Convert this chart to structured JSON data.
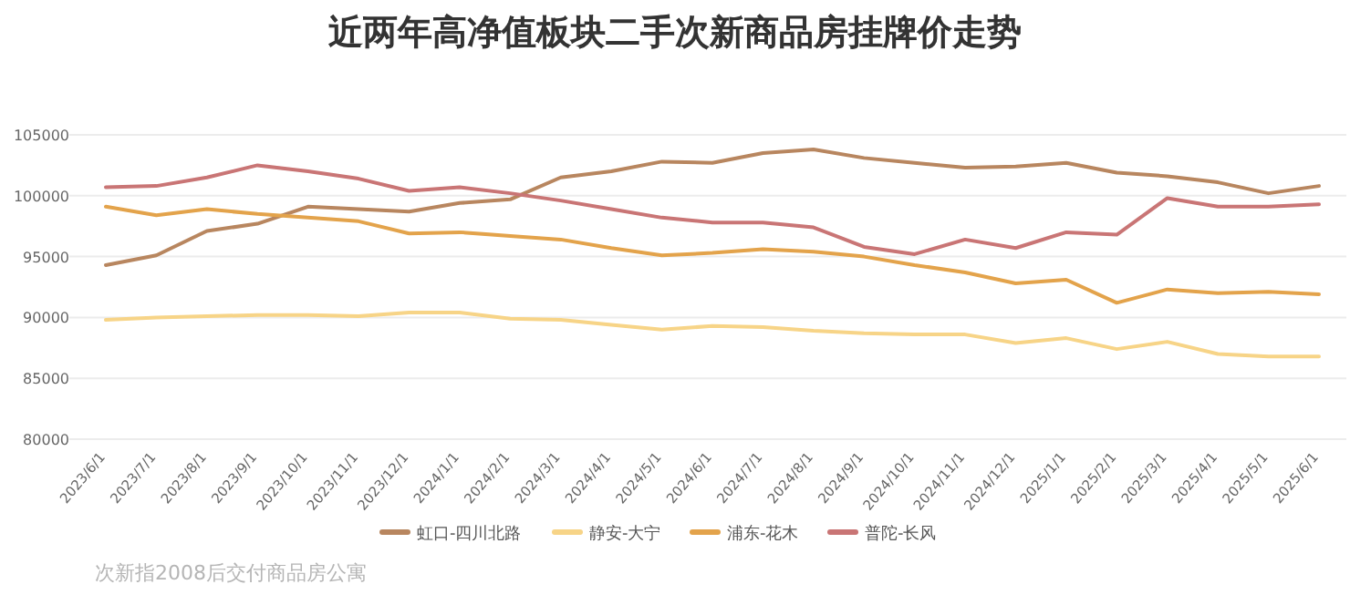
{
  "chart_data": {
    "type": "line",
    "title": "近两年高净值板块二手次新商品房挂牌价走势",
    "categories": [
      "2023/6/1",
      "2023/7/1",
      "2023/8/1",
      "2023/9/1",
      "2023/10/1",
      "2023/11/1",
      "2023/12/1",
      "2024/1/1",
      "2024/2/1",
      "2024/3/1",
      "2024/4/1",
      "2024/5/1",
      "2024/6/1",
      "2024/7/1",
      "2024/8/1",
      "2024/9/1",
      "2024/10/1",
      "2024/11/1",
      "2024/12/1",
      "2025/1/1",
      "2025/2/1",
      "2025/3/1",
      "2025/4/1",
      "2025/5/1",
      "2025/6/1"
    ],
    "series": [
      {
        "name": "虹口-四川北路",
        "color": "#b8865f",
        "values": [
          94300,
          95100,
          97100,
          97700,
          99100,
          98900,
          98700,
          99400,
          99700,
          101500,
          102000,
          102800,
          102700,
          103500,
          103800,
          103100,
          102700,
          102300,
          102400,
          102700,
          101900,
          101600,
          101100,
          100200,
          100800
        ]
      },
      {
        "name": "静安-大宁",
        "color": "#f7d487",
        "values": [
          89800,
          90000,
          90100,
          90200,
          90200,
          90100,
          90400,
          90400,
          89900,
          89800,
          89400,
          89000,
          89300,
          89200,
          88900,
          88700,
          88600,
          88600,
          87900,
          88300,
          87400,
          88000,
          87000,
          86800,
          86800
        ]
      },
      {
        "name": "浦东-花木",
        "color": "#e3a34b",
        "values": [
          99100,
          98400,
          98900,
          98500,
          98200,
          97900,
          96900,
          97000,
          96700,
          96400,
          95700,
          95100,
          95300,
          95600,
          95400,
          95000,
          94300,
          93700,
          92800,
          93100,
          91200,
          92300,
          92000,
          92100,
          91900
        ]
      },
      {
        "name": "普陀-长风",
        "color": "#c97575",
        "values": [
          100700,
          100800,
          101500,
          102500,
          102000,
          101400,
          100400,
          100700,
          100200,
          99600,
          98900,
          98200,
          97800,
          97800,
          97400,
          95800,
          95200,
          96400,
          95700,
          97000,
          96800,
          99800,
          99100,
          99100,
          99300
        ]
      }
    ],
    "ylim": [
      80000,
      105000
    ],
    "yticks": [
      80000,
      85000,
      90000,
      95000,
      100000,
      105000
    ],
    "grid": "y",
    "legend": "bottom",
    "marker": "none",
    "line_style": "solid",
    "annotations": [
      "次新指2008后交付商品房公寓"
    ]
  }
}
